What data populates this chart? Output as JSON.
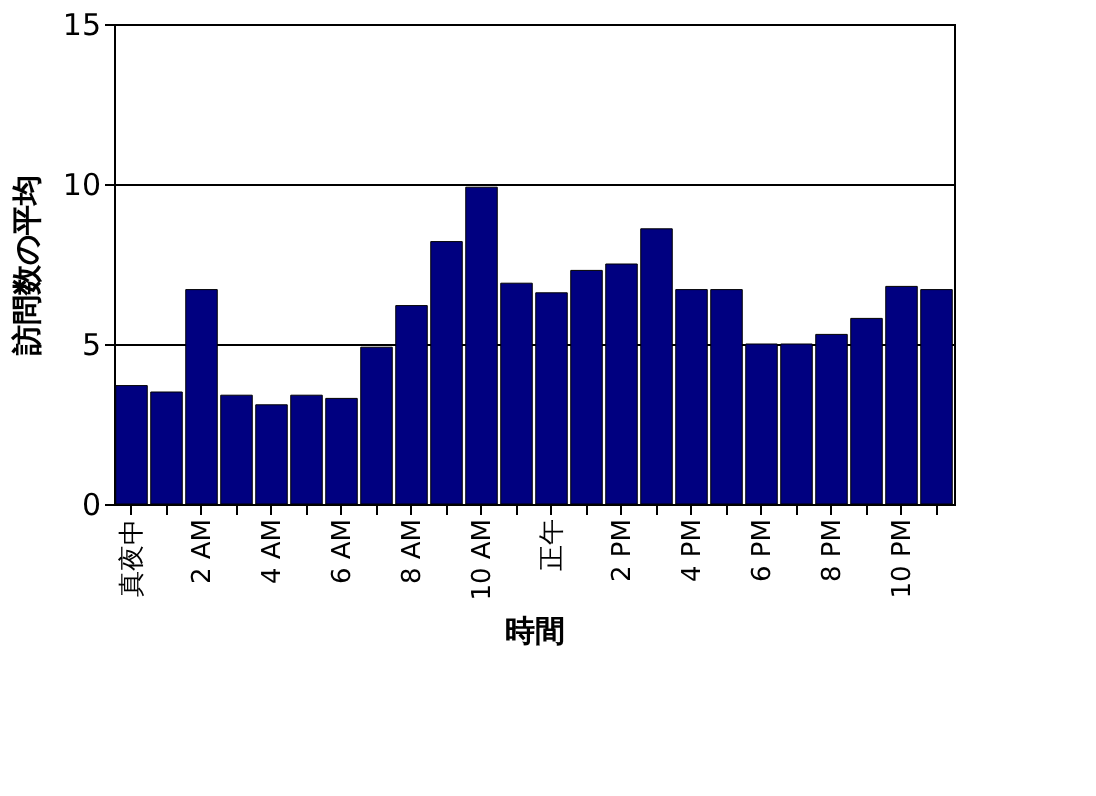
{
  "chart_data": {
    "type": "bar",
    "xlabel": "時間",
    "ylabel": "訪問数の平均",
    "categories": [
      "真夜中",
      null,
      "2 AM",
      null,
      "4 AM",
      null,
      "6 AM",
      null,
      "8 AM",
      null,
      "10 AM",
      null,
      "正午",
      null,
      "2 PM",
      null,
      "4 PM",
      null,
      "6 PM",
      null,
      "8 PM",
      null,
      "10 PM",
      null
    ],
    "values": [
      3.7,
      3.5,
      6.7,
      3.4,
      3.1,
      3.4,
      3.3,
      4.9,
      6.2,
      8.2,
      9.9,
      6.9,
      6.6,
      7.3,
      7.5,
      8.6,
      6.7,
      6.7,
      5.0,
      5.0,
      5.3,
      5.8,
      6.8,
      6.7
    ],
    "color": "#000080",
    "ylim": [
      0,
      15
    ],
    "yticks": [
      0,
      5,
      10,
      15
    ],
    "grid": "y"
  }
}
